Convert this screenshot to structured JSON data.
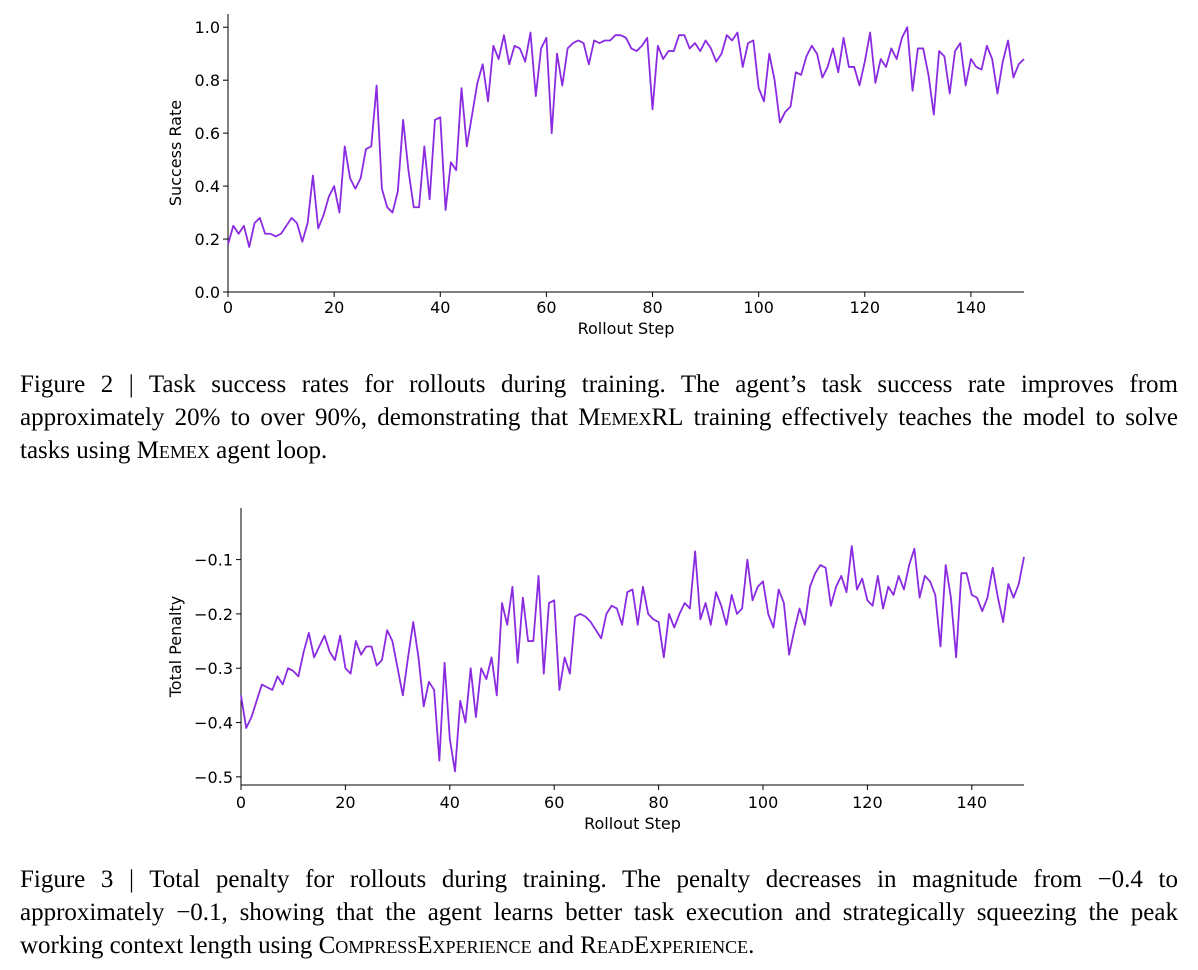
{
  "chart_data": [
    {
      "type": "line",
      "xlabel": "Rollout Step",
      "ylabel": "Success Rate",
      "color": "#8a2be2",
      "xlim": [
        0,
        150
      ],
      "ylim": [
        0,
        1.05
      ],
      "xticks": [
        0,
        20,
        40,
        60,
        80,
        100,
        120,
        140
      ],
      "yticks": [
        {
          "value": 0,
          "label": "0.0"
        },
        0.2,
        0.4,
        0.6,
        0.8,
        {
          "value": 1,
          "label": "1.0"
        }
      ],
      "x": [
        0,
        1,
        2,
        3,
        4,
        5,
        6,
        7,
        8,
        9,
        10,
        11,
        12,
        13,
        14,
        15,
        16,
        17,
        18,
        19,
        20,
        21,
        22,
        23,
        24,
        25,
        26,
        27,
        28,
        29,
        30,
        31,
        32,
        33,
        34,
        35,
        36,
        37,
        38,
        39,
        40,
        41,
        42,
        43,
        44,
        45,
        46,
        47,
        48,
        49,
        50,
        51,
        52,
        53,
        54,
        55,
        56,
        57,
        58,
        59,
        60,
        61,
        62,
        63,
        64,
        65,
        66,
        67,
        68,
        69,
        70,
        71,
        72,
        73,
        74,
        75,
        76,
        77,
        78,
        79,
        80,
        81,
        82,
        83,
        84,
        85,
        86,
        87,
        88,
        89,
        90,
        91,
        92,
        93,
        94,
        95,
        96,
        97,
        98,
        99,
        100,
        101,
        102,
        103,
        104,
        105,
        106,
        107,
        108,
        109,
        110,
        111,
        112,
        113,
        114,
        115,
        116,
        117,
        118,
        119,
        120,
        121,
        122,
        123,
        124,
        125,
        126,
        127,
        128,
        129,
        130,
        131,
        132,
        133,
        134,
        135,
        136,
        137,
        138,
        139,
        140,
        141,
        142,
        143,
        144,
        145,
        146,
        147,
        148,
        149,
        150
      ],
      "values": [
        0.18,
        0.25,
        0.22,
        0.25,
        0.17,
        0.26,
        0.28,
        0.22,
        0.22,
        0.21,
        0.22,
        0.25,
        0.28,
        0.26,
        0.19,
        0.26,
        0.44,
        0.24,
        0.29,
        0.36,
        0.4,
        0.3,
        0.55,
        0.43,
        0.39,
        0.43,
        0.54,
        0.55,
        0.78,
        0.39,
        0.32,
        0.3,
        0.38,
        0.65,
        0.46,
        0.32,
        0.32,
        0.55,
        0.35,
        0.65,
        0.66,
        0.31,
        0.49,
        0.46,
        0.77,
        0.55,
        0.67,
        0.79,
        0.86,
        0.72,
        0.93,
        0.88,
        0.97,
        0.86,
        0.93,
        0.92,
        0.87,
        0.98,
        0.74,
        0.92,
        0.96,
        0.6,
        0.9,
        0.78,
        0.92,
        0.94,
        0.95,
        0.94,
        0.86,
        0.95,
        0.94,
        0.95,
        0.95,
        0.97,
        0.97,
        0.96,
        0.92,
        0.91,
        0.93,
        0.96,
        0.69,
        0.93,
        0.88,
        0.91,
        0.91,
        0.97,
        0.97,
        0.92,
        0.94,
        0.91,
        0.95,
        0.92,
        0.87,
        0.9,
        0.97,
        0.95,
        0.98,
        0.85,
        0.94,
        0.95,
        0.77,
        0.72,
        0.9,
        0.8,
        0.64,
        0.68,
        0.7,
        0.83,
        0.82,
        0.89,
        0.93,
        0.9,
        0.81,
        0.85,
        0.92,
        0.83,
        0.96,
        0.85,
        0.85,
        0.78,
        0.87,
        0.98,
        0.79,
        0.88,
        0.85,
        0.92,
        0.88,
        0.96,
        1.0,
        0.76,
        0.92,
        0.92,
        0.82,
        0.67,
        0.91,
        0.89,
        0.75,
        0.91,
        0.94,
        0.78,
        0.88,
        0.85,
        0.84,
        0.93,
        0.88,
        0.75,
        0.87,
        0.95,
        0.81,
        0.86,
        0.88
      ]
    },
    {
      "type": "line",
      "xlabel": "Rollout Step",
      "ylabel": "Total Penalty",
      "color": "#8a2be2",
      "xlim": [
        0,
        150
      ],
      "ylim": [
        -0.515,
        -0.005
      ],
      "xticks": [
        0,
        20,
        40,
        60,
        80,
        100,
        120,
        140
      ],
      "yticks": [
        {
          "value": -0.5,
          "label": "−0.5"
        },
        {
          "value": -0.4,
          "label": "−0.4"
        },
        {
          "value": -0.3,
          "label": "−0.3"
        },
        {
          "value": -0.2,
          "label": "−0.2"
        },
        {
          "value": -0.1,
          "label": "−0.1"
        }
      ],
      "x": [
        0,
        1,
        2,
        3,
        4,
        5,
        6,
        7,
        8,
        9,
        10,
        11,
        12,
        13,
        14,
        15,
        16,
        17,
        18,
        19,
        20,
        21,
        22,
        23,
        24,
        25,
        26,
        27,
        28,
        29,
        30,
        31,
        32,
        33,
        34,
        35,
        36,
        37,
        38,
        39,
        40,
        41,
        42,
        43,
        44,
        45,
        46,
        47,
        48,
        49,
        50,
        51,
        52,
        53,
        54,
        55,
        56,
        57,
        58,
        59,
        60,
        61,
        62,
        63,
        64,
        65,
        66,
        67,
        68,
        69,
        70,
        71,
        72,
        73,
        74,
        75,
        76,
        77,
        78,
        79,
        80,
        81,
        82,
        83,
        84,
        85,
        86,
        87,
        88,
        89,
        90,
        91,
        92,
        93,
        94,
        95,
        96,
        97,
        98,
        99,
        100,
        101,
        102,
        103,
        104,
        105,
        106,
        107,
        108,
        109,
        110,
        111,
        112,
        113,
        114,
        115,
        116,
        117,
        118,
        119,
        120,
        121,
        122,
        123,
        124,
        125,
        126,
        127,
        128,
        129,
        130,
        131,
        132,
        133,
        134,
        135,
        136,
        137,
        138,
        139,
        140,
        141,
        142,
        143,
        144,
        145,
        146,
        147,
        148,
        149,
        150
      ],
      "values": [
        -0.35,
        -0.41,
        -0.39,
        -0.36,
        -0.33,
        -0.335,
        -0.34,
        -0.315,
        -0.33,
        -0.3,
        -0.305,
        -0.315,
        -0.27,
        -0.235,
        -0.28,
        -0.26,
        -0.24,
        -0.27,
        -0.285,
        -0.24,
        -0.3,
        -0.31,
        -0.25,
        -0.275,
        -0.26,
        -0.26,
        -0.295,
        -0.285,
        -0.23,
        -0.25,
        -0.3,
        -0.35,
        -0.28,
        -0.215,
        -0.28,
        -0.37,
        -0.325,
        -0.34,
        -0.47,
        -0.29,
        -0.43,
        -0.49,
        -0.36,
        -0.4,
        -0.3,
        -0.39,
        -0.3,
        -0.32,
        -0.28,
        -0.35,
        -0.18,
        -0.22,
        -0.15,
        -0.29,
        -0.17,
        -0.25,
        -0.25,
        -0.13,
        -0.31,
        -0.18,
        -0.175,
        -0.34,
        -0.28,
        -0.31,
        -0.205,
        -0.2,
        -0.205,
        -0.215,
        -0.23,
        -0.245,
        -0.2,
        -0.185,
        -0.19,
        -0.22,
        -0.16,
        -0.155,
        -0.22,
        -0.15,
        -0.2,
        -0.21,
        -0.215,
        -0.28,
        -0.2,
        -0.225,
        -0.2,
        -0.18,
        -0.19,
        -0.085,
        -0.21,
        -0.18,
        -0.22,
        -0.16,
        -0.185,
        -0.22,
        -0.165,
        -0.2,
        -0.19,
        -0.1,
        -0.175,
        -0.15,
        -0.14,
        -0.2,
        -0.225,
        -0.155,
        -0.18,
        -0.275,
        -0.23,
        -0.19,
        -0.22,
        -0.15,
        -0.125,
        -0.11,
        -0.115,
        -0.185,
        -0.15,
        -0.13,
        -0.16,
        -0.075,
        -0.155,
        -0.135,
        -0.175,
        -0.185,
        -0.13,
        -0.19,
        -0.15,
        -0.165,
        -0.13,
        -0.155,
        -0.11,
        -0.08,
        -0.17,
        -0.13,
        -0.14,
        -0.165,
        -0.26,
        -0.11,
        -0.17,
        -0.28,
        -0.125,
        -0.125,
        -0.165,
        -0.17,
        -0.195,
        -0.17,
        -0.115,
        -0.17,
        -0.215,
        -0.145,
        -0.17,
        -0.145,
        -0.095
      ]
    }
  ],
  "captions": [
    {
      "runs": [
        {
          "text": "Figure 2 | Task success rates for rollouts during training. The agent’s task success rate improves from approximately 20% to over 90%, demonstrating that "
        },
        {
          "text": "MemexRL",
          "style": "small-caps"
        },
        {
          "text": " training effectively teaches the model to solve tasks using "
        },
        {
          "text": "Memex",
          "style": "small-caps"
        },
        {
          "text": " agent loop."
        }
      ]
    },
    {
      "runs": [
        {
          "text": "Figure 3 | Total penalty for rollouts during training. The penalty decreases in magnitude from −0.4 to approximately −0.1, showing that the agent learns better task execution and strategically squeezing the peak working context length using "
        },
        {
          "text": "CompressExperience",
          "style": "small-caps"
        },
        {
          "text": " and "
        },
        {
          "text": "ReadExperience",
          "style": "small-caps"
        },
        {
          "text": "."
        }
      ]
    }
  ]
}
